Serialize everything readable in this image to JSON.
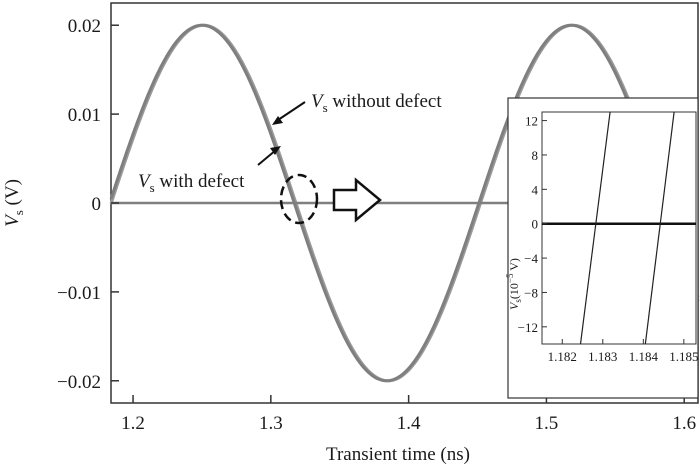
{
  "chart_data": {
    "type": "line",
    "title": "",
    "xlabel": "Transient time (ns)",
    "ylabel": "V",
    "ylabel_sub": "s",
    "ylabel_unit": " (V)",
    "xlim": [
      1.184,
      1.61
    ],
    "ylim": [
      -0.0225,
      0.0225
    ],
    "xticks": [
      1.2,
      1.3,
      1.4,
      1.5,
      1.6
    ],
    "xtick_labels": [
      "1.2",
      "1.3",
      "1.4",
      "1.5",
      "1.6"
    ],
    "yticks": [
      0.02,
      0.01,
      0,
      -0.01,
      -0.02
    ],
    "ytick_labels": [
      "0.02",
      "0.01",
      "0",
      "−0.01",
      "−0.02"
    ],
    "grid": false,
    "series": [
      {
        "key": "without",
        "label_prefix": "V",
        "label_sub": "s",
        "label_suffix": " without defect",
        "amplitude": 0.02,
        "period_ns": 0.268,
        "phase_zero_ns": 1.183,
        "color": "#7f7f7f"
      },
      {
        "key": "with",
        "label_prefix": "V",
        "label_sub": "s",
        "label_suffix": " with defect",
        "amplitude": 0.02,
        "period_ns": 0.268,
        "phase_zero_ns": 1.1842,
        "color": "#9a9a9a"
      }
    ],
    "baseline": {
      "y": 0,
      "color": "#7f7f7f"
    },
    "inset": {
      "type": "line",
      "xlim": [
        1.1815,
        1.1853
      ],
      "ylim": [
        -14,
        13
      ],
      "xticks": [
        1.182,
        1.183,
        1.184,
        1.185
      ],
      "xtick_labels": [
        "1.182",
        "1.183",
        "1.184",
        "1.185"
      ],
      "yticks": [
        12,
        8,
        4,
        0,
        -4,
        -8,
        -12
      ],
      "ytick_labels": [
        "12",
        "8",
        "4",
        "0",
        "−4",
        "−8",
        "−12"
      ],
      "ylabel_main": "V",
      "ylabel_sub": "s",
      "ylabel_paren": "(10",
      "ylabel_exp": "−5",
      "ylabel_unit": " V)",
      "lines": [
        {
          "x": [
            1.18245,
            1.18318
          ],
          "y": [
            -14,
            13
          ]
        },
        {
          "x": [
            1.18405,
            1.18476
          ],
          "y": [
            -14,
            13
          ]
        }
      ],
      "baseline_y": 0
    }
  }
}
